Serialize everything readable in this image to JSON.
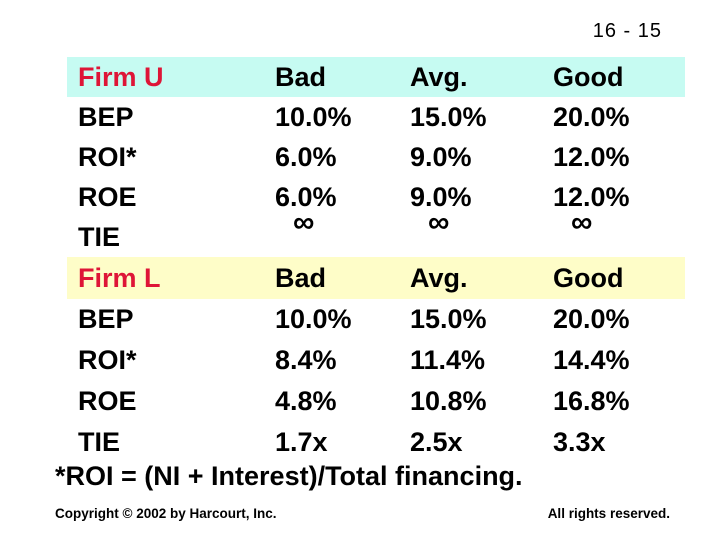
{
  "slide_number": "16 - 15",
  "colors": {
    "firm_u_header_bg": "#C6FBF2",
    "firm_l_header_bg": "#FEFDC8",
    "firm_name": "#DE1537",
    "table_text": "#000000"
  },
  "chart_data": {
    "type": "table",
    "sections": [
      {
        "firm": "Firm U",
        "columns": [
          "Bad",
          "Avg.",
          "Good"
        ],
        "rows": [
          {
            "label": "BEP",
            "values": [
              "10.0%",
              "15.0%",
              "20.0%"
            ]
          },
          {
            "label": "ROI*",
            "values": [
              "6.0%",
              "9.0%",
              "12.0%"
            ]
          },
          {
            "label": "ROE",
            "values": [
              "6.0%",
              "9.0%",
              "12.0%"
            ]
          },
          {
            "label": "TIE",
            "values": [
              "∞",
              "∞",
              "∞"
            ]
          }
        ]
      },
      {
        "firm": "Firm L",
        "columns": [
          "Bad",
          "Avg.",
          "Good"
        ],
        "rows": [
          {
            "label": "BEP",
            "values": [
              "10.0%",
              "15.0%",
              "20.0%"
            ]
          },
          {
            "label": "ROI*",
            "values": [
              "8.4%",
              "11.4%",
              "14.4%"
            ]
          },
          {
            "label": "ROE",
            "values": [
              "4.8%",
              "10.8%",
              "16.8%"
            ]
          },
          {
            "label": "TIE",
            "values": [
              "1.7x",
              "2.5x",
              "3.3x"
            ]
          }
        ]
      }
    ]
  },
  "footnote": "*ROI = (NI + Interest)/Total financing.",
  "footer": {
    "copyright": "Copyright © 2002 by Harcourt, Inc.",
    "rights": "All rights reserved."
  }
}
